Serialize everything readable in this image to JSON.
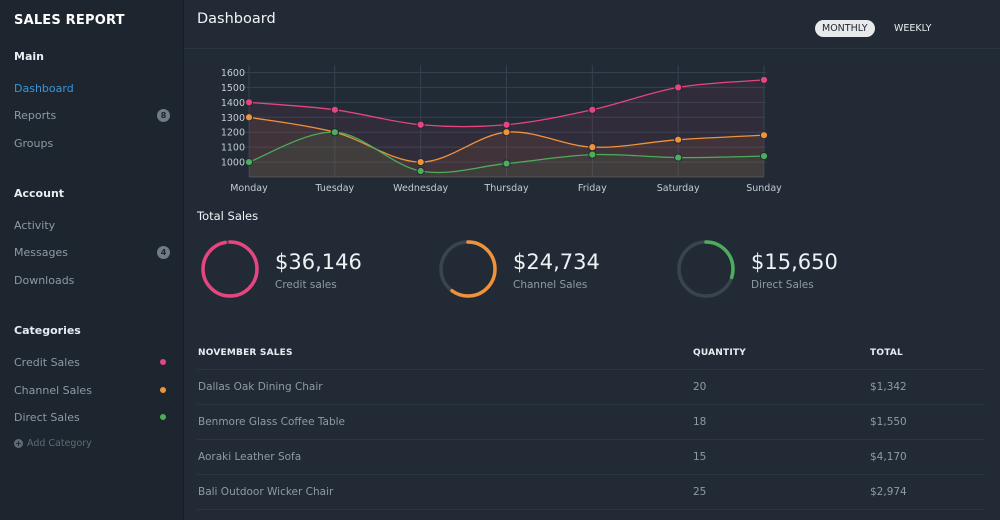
{
  "app": {
    "title": "SALES REPORT"
  },
  "sidebar": {
    "main": {
      "title": "Main",
      "items": [
        {
          "label": "Dashboard",
          "active": true
        },
        {
          "label": "Reports",
          "badge": "8"
        },
        {
          "label": "Groups"
        }
      ]
    },
    "account": {
      "title": "Account",
      "items": [
        {
          "label": "Activity"
        },
        {
          "label": "Messages",
          "badge": "4"
        },
        {
          "label": "Downloads"
        }
      ]
    },
    "categories": {
      "title": "Categories",
      "items": [
        {
          "label": "Credit Sales",
          "color": "#e64580"
        },
        {
          "label": "Channel Sales",
          "color": "#f0923a"
        },
        {
          "label": "Direct Sales",
          "color": "#4cae5b"
        }
      ],
      "add_label": "Add Category"
    }
  },
  "header": {
    "title": "Dashboard",
    "toggle": {
      "monthly": "MONTHLY",
      "weekly": "WEEKLY",
      "selected": "MONTHLY"
    }
  },
  "chart_data": {
    "type": "line",
    "categories": [
      "Monday",
      "Tuesday",
      "Wednesday",
      "Thursday",
      "Friday",
      "Saturday",
      "Sunday"
    ],
    "series": [
      {
        "values": [
          1400,
          1350,
          1250,
          1250,
          1350,
          1500,
          1550
        ],
        "color": "#e64580"
      },
      {
        "values": [
          1300,
          1200,
          1000,
          1200,
          1100,
          1150,
          1180
        ],
        "color": "#f0923a"
      },
      {
        "values": [
          1000,
          1200,
          940,
          990,
          1050,
          1030,
          1040
        ],
        "color": "#4cae5b"
      }
    ],
    "yticks": [
      1000,
      1100,
      1200,
      1300,
      1400,
      1500,
      1600
    ],
    "ylim": [
      900,
      1650
    ],
    "grid": true
  },
  "total_sales": {
    "title": "Total Sales",
    "kpis": [
      {
        "value": "$36,146",
        "label": "Credit sales",
        "color": "#e64580",
        "fraction": 0.97
      },
      {
        "value": "$24,734",
        "label": "Channel Sales",
        "color": "#f0923a",
        "fraction": 0.6
      },
      {
        "value": "$15,650",
        "label": "Direct Sales",
        "color": "#4cae5b",
        "fraction": 0.3
      }
    ]
  },
  "table": {
    "headers": [
      "NOVEMBER SALES",
      "QUANTITY",
      "TOTAL"
    ],
    "rows": [
      [
        "Dallas Oak Dining Chair",
        "20",
        "$1,342"
      ],
      [
        "Benmore Glass Coffee Table",
        "18",
        "$1,550"
      ],
      [
        "Aoraki Leather Sofa",
        "15",
        "$4,170"
      ],
      [
        "Bali Outdoor Wicker Chair",
        "25",
        "$2,974"
      ]
    ]
  }
}
